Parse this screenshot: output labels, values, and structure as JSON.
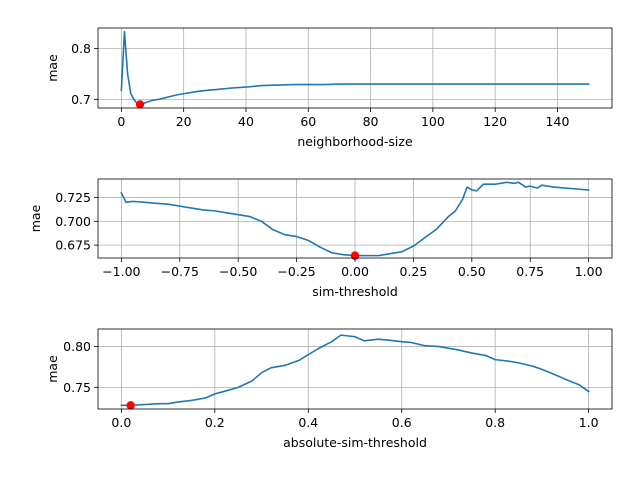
{
  "colors": {
    "line": "#1f77b4",
    "marker": "#ff0000",
    "grid": "#b0b0b0",
    "background": "#ffffff"
  },
  "chart_data": [
    {
      "type": "line",
      "xlabel": "neighborhood-size",
      "ylabel": "mae",
      "xlim": [
        -7.5,
        157.5
      ],
      "ylim": [
        0.683,
        0.84
      ],
      "xticks": [
        0,
        20,
        40,
        60,
        80,
        100,
        120,
        140
      ],
      "xtick_labels": [
        "0",
        "20",
        "40",
        "60",
        "80",
        "100",
        "120",
        "140"
      ],
      "yticks": [
        0.7,
        0.8
      ],
      "ytick_labels": [
        "0.7",
        "0.8"
      ],
      "grid": true,
      "series": [
        {
          "name": "mae",
          "x": [
            0,
            1,
            2,
            3,
            4,
            5,
            6,
            8,
            10,
            12,
            14,
            16,
            18,
            20,
            22,
            25,
            28,
            30,
            35,
            40,
            45,
            50,
            55,
            60,
            65,
            70,
            80,
            90,
            100,
            110,
            120,
            130,
            140,
            150
          ],
          "y": [
            0.718,
            0.833,
            0.75,
            0.712,
            0.7,
            0.692,
            0.69,
            0.694,
            0.698,
            0.7,
            0.703,
            0.706,
            0.709,
            0.711,
            0.713,
            0.716,
            0.718,
            0.719,
            0.722,
            0.724,
            0.727,
            0.728,
            0.729,
            0.729,
            0.729,
            0.73,
            0.73,
            0.73,
            0.73,
            0.73,
            0.73,
            0.73,
            0.73,
            0.73
          ]
        }
      ],
      "best_point": {
        "x": 6,
        "y": 0.69
      }
    },
    {
      "type": "line",
      "xlabel": "sim-threshold",
      "ylabel": "mae",
      "xlim": [
        -1.1,
        1.1
      ],
      "ylim": [
        0.6615,
        0.7445
      ],
      "xticks": [
        -1.0,
        -0.75,
        -0.5,
        -0.25,
        0.0,
        0.25,
        0.5,
        0.75,
        1.0
      ],
      "xtick_labels": [
        "−1.00",
        "−0.75",
        "−0.50",
        "−0.25",
        "0.00",
        "0.25",
        "0.50",
        "0.75",
        "1.00"
      ],
      "yticks": [
        0.675,
        0.7,
        0.725
      ],
      "ytick_labels": [
        "0.675",
        "0.700",
        "0.725"
      ],
      "grid": true,
      "series": [
        {
          "name": "mae",
          "x": [
            -1.0,
            -0.98,
            -0.95,
            -0.9,
            -0.85,
            -0.8,
            -0.75,
            -0.7,
            -0.65,
            -0.6,
            -0.55,
            -0.5,
            -0.45,
            -0.4,
            -0.35,
            -0.3,
            -0.25,
            -0.2,
            -0.15,
            -0.1,
            -0.05,
            0.0,
            0.05,
            0.1,
            0.15,
            0.2,
            0.25,
            0.3,
            0.35,
            0.4,
            0.43,
            0.46,
            0.48,
            0.5,
            0.52,
            0.55,
            0.6,
            0.65,
            0.68,
            0.7,
            0.73,
            0.75,
            0.78,
            0.8,
            0.85,
            0.9,
            0.95,
            1.0
          ],
          "y": [
            0.73,
            0.72,
            0.721,
            0.72,
            0.719,
            0.718,
            0.716,
            0.714,
            0.712,
            0.711,
            0.709,
            0.707,
            0.705,
            0.7,
            0.691,
            0.686,
            0.684,
            0.68,
            0.673,
            0.667,
            0.665,
            0.664,
            0.664,
            0.664,
            0.666,
            0.668,
            0.674,
            0.683,
            0.692,
            0.705,
            0.711,
            0.723,
            0.736,
            0.733,
            0.732,
            0.739,
            0.739,
            0.741,
            0.74,
            0.741,
            0.736,
            0.737,
            0.735,
            0.738,
            0.736,
            0.735,
            0.734,
            0.733
          ]
        }
      ],
      "best_point": {
        "x": 0.0,
        "y": 0.664
      }
    },
    {
      "type": "line",
      "xlabel": "absolute-sim-threshold",
      "ylabel": "mae",
      "xlim": [
        -0.05,
        1.05
      ],
      "ylim": [
        0.7235,
        0.8215
      ],
      "xticks": [
        0.0,
        0.2,
        0.4,
        0.6,
        0.8,
        1.0
      ],
      "xtick_labels": [
        "0.0",
        "0.2",
        "0.4",
        "0.6",
        "0.8",
        "1.0"
      ],
      "yticks": [
        0.75,
        0.8
      ],
      "ytick_labels": [
        "0.75",
        "0.80"
      ],
      "grid": true,
      "series": [
        {
          "name": "mae",
          "x": [
            0.0,
            0.02,
            0.05,
            0.08,
            0.1,
            0.12,
            0.15,
            0.18,
            0.2,
            0.22,
            0.25,
            0.28,
            0.3,
            0.32,
            0.35,
            0.38,
            0.4,
            0.42,
            0.45,
            0.47,
            0.5,
            0.52,
            0.55,
            0.57,
            0.6,
            0.62,
            0.65,
            0.68,
            0.7,
            0.72,
            0.75,
            0.78,
            0.8,
            0.83,
            0.85,
            0.88,
            0.9,
            0.93,
            0.95,
            0.98,
            1.0
          ],
          "y": [
            0.728,
            0.728,
            0.729,
            0.73,
            0.73,
            0.732,
            0.734,
            0.737,
            0.742,
            0.745,
            0.75,
            0.758,
            0.768,
            0.774,
            0.777,
            0.783,
            0.79,
            0.797,
            0.806,
            0.814,
            0.812,
            0.807,
            0.809,
            0.808,
            0.806,
            0.805,
            0.801,
            0.8,
            0.798,
            0.796,
            0.792,
            0.789,
            0.784,
            0.782,
            0.78,
            0.776,
            0.772,
            0.765,
            0.76,
            0.753,
            0.745
          ]
        }
      ],
      "best_point": {
        "x": 0.02,
        "y": 0.728
      }
    }
  ]
}
